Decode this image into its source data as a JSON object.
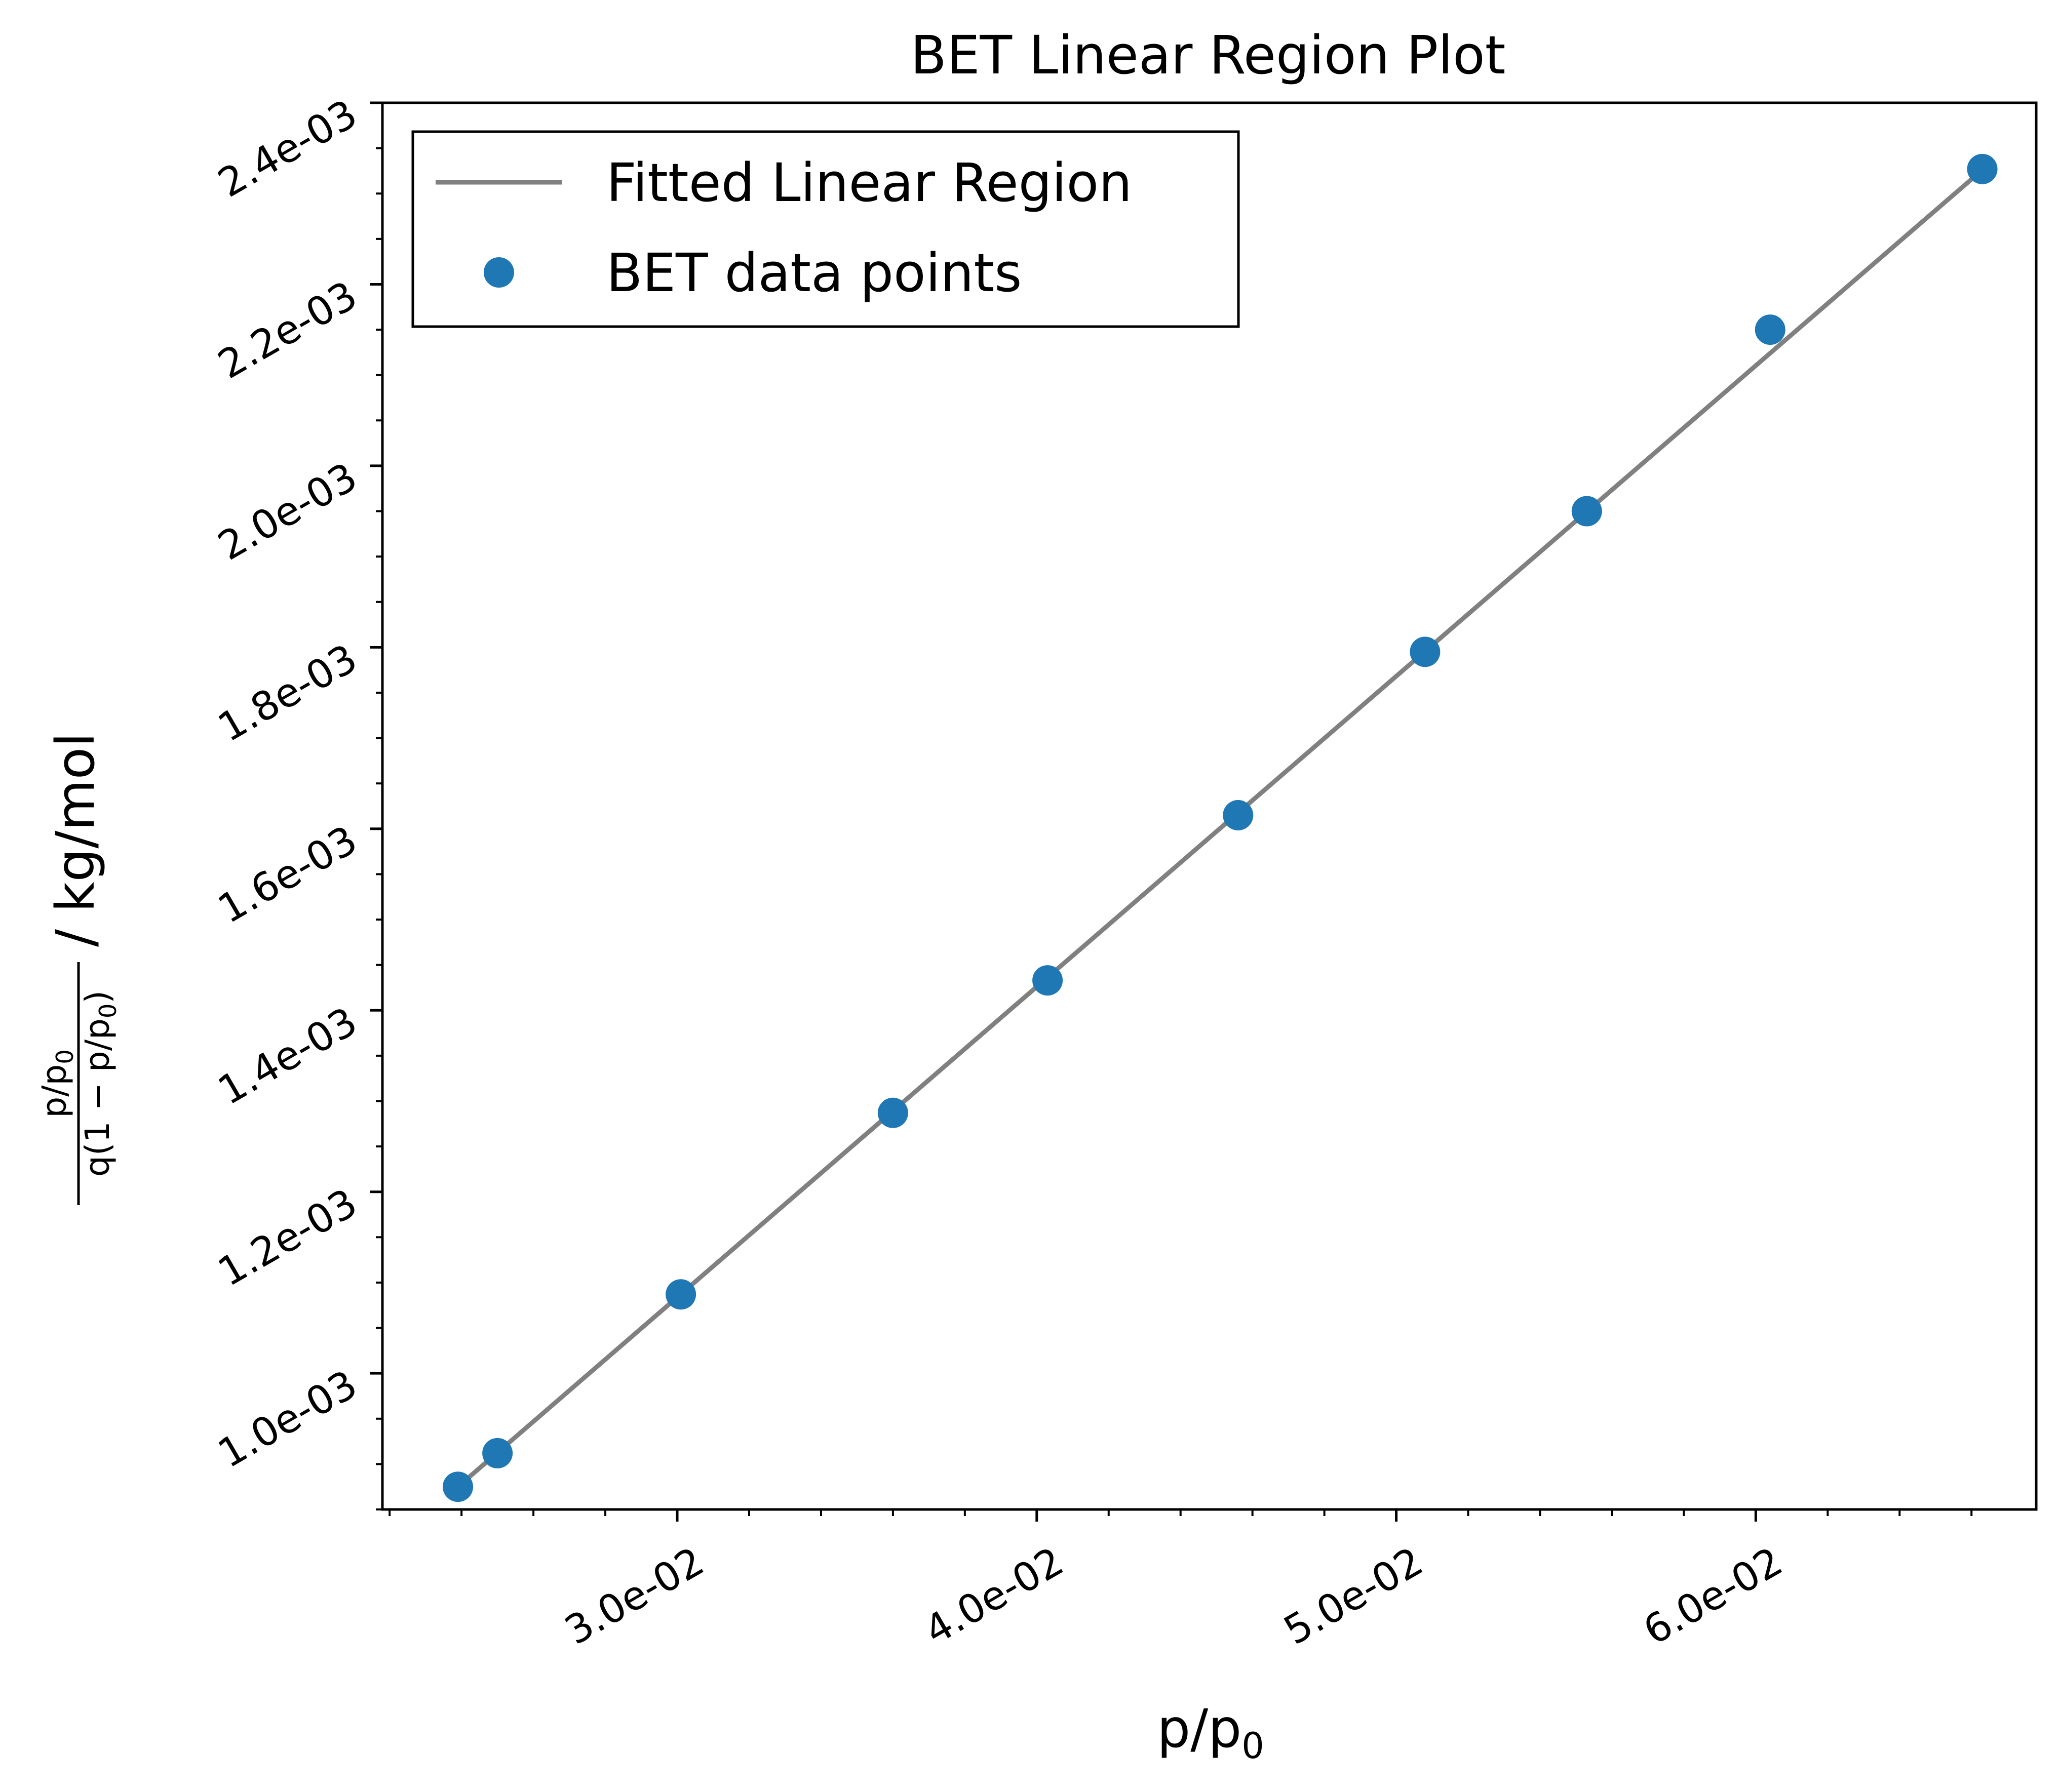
{
  "chart_data": {
    "type": "scatter",
    "title": "BET Linear Region Plot",
    "xlabel": {
      "main": "p/p",
      "sub": "0"
    },
    "ylabel": {
      "numerator": [
        "p/p",
        "0"
      ],
      "denominator": [
        "q(1 − p/p",
        "0",
        ")"
      ],
      "unit": " / kg/mol"
    },
    "xlim": [
      0.0218,
      0.0678
    ],
    "ylim": [
      0.00085,
      0.0024
    ],
    "x_ticks": [
      0.03,
      0.04,
      0.05,
      0.06
    ],
    "x_tick_labels": [
      "3.0e-02",
      "4.0e-02",
      "5.0e-02",
      "6.0e-02"
    ],
    "y_ticks": [
      0.001,
      0.0012,
      0.0014,
      0.0016,
      0.0018,
      0.002,
      0.0022,
      0.0024
    ],
    "y_tick_labels": [
      "1.0e-03",
      "1.2e-03",
      "1.4e-03",
      "1.6e-03",
      "1.8e-03",
      "2.0e-03",
      "2.2e-03",
      "2.4e-03"
    ],
    "grid": false,
    "legend_position": "upper-left",
    "series": [
      {
        "name": "Fitted Linear Region",
        "kind": "line",
        "color": "#808080",
        "x": [
          0.0239,
          0.0663
        ],
        "y": [
          0.000875,
          0.002326
        ]
      },
      {
        "name": "BET data points",
        "kind": "scatter",
        "color": "#1f77b4",
        "x": [
          0.0239,
          0.025,
          0.0301,
          0.036,
          0.0403,
          0.0456,
          0.0508,
          0.0553,
          0.0604,
          0.0663
        ],
        "y": [
          0.000875,
          0.000912,
          0.001087,
          0.001287,
          0.001433,
          0.001615,
          0.001795,
          0.00195,
          0.00215,
          0.002327
        ]
      }
    ]
  }
}
